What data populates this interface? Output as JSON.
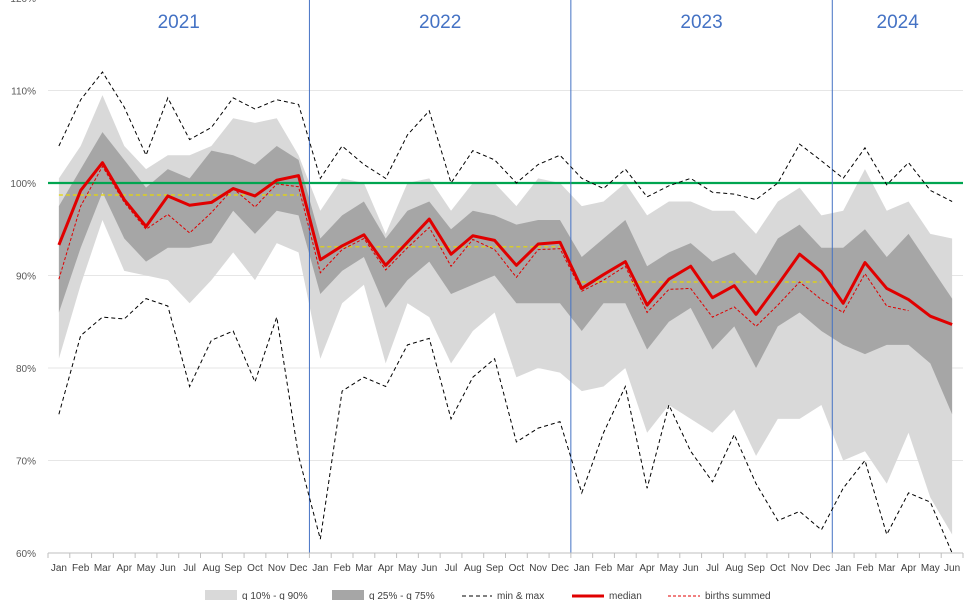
{
  "chart_data": {
    "type": "area",
    "title": "",
    "xlabel": "",
    "ylabel": "",
    "ylim": [
      60,
      120
    ],
    "yticks": [
      60,
      70,
      80,
      90,
      100,
      110,
      120
    ],
    "ytick_labels": [
      "60%",
      "70%",
      "80%",
      "90%",
      "100%",
      "110%",
      "120%"
    ],
    "categories": [
      "Jan",
      "Feb",
      "Mar",
      "Apr",
      "May",
      "Jun",
      "Jul",
      "Aug",
      "Sep",
      "Oct",
      "Nov",
      "Dec",
      "Jan",
      "Feb",
      "Mar",
      "Apr",
      "May",
      "Jun",
      "Jul",
      "Aug",
      "Sep",
      "Oct",
      "Nov",
      "Dec",
      "Jan",
      "Feb",
      "Mar",
      "Apr",
      "May",
      "Jun",
      "Jul",
      "Aug",
      "Sep",
      "Oct",
      "Nov",
      "Dec",
      "Jan",
      "Feb",
      "Mar",
      "Apr",
      "May",
      "Jun"
    ],
    "years": [
      {
        "label": "2021",
        "start_index": 0,
        "end_index": 11
      },
      {
        "label": "2022",
        "start_index": 12,
        "end_index": 23
      },
      {
        "label": "2023",
        "start_index": 24,
        "end_index": 35
      },
      {
        "label": "2024",
        "start_index": 36,
        "end_index": 41
      }
    ],
    "reference_line": {
      "value": 100,
      "color": "#00a550"
    },
    "series": [
      {
        "name": "q 10% - q 90%",
        "kind": "band",
        "color": "#d9d9d9",
        "lower": [
          81,
          89,
          96,
          90.5,
          90,
          89.5,
          87,
          89.5,
          92.5,
          89.5,
          93.5,
          92.5,
          81,
          87,
          89,
          80.5,
          87,
          85.5,
          80.5,
          84,
          86,
          79,
          80,
          79.5,
          77.5,
          78,
          80,
          73,
          76,
          74.5,
          73,
          75.5,
          70.5,
          74.5,
          74.5,
          76,
          70,
          71,
          67.5,
          73,
          66,
          62
        ],
        "upper": [
          100.5,
          104,
          109.5,
          104,
          101.5,
          103,
          103,
          104,
          107,
          106.5,
          107,
          103,
          97,
          100.5,
          100,
          94.5,
          100,
          100.5,
          97,
          100,
          100,
          97.5,
          100.5,
          100,
          97.5,
          98,
          100,
          96.5,
          98,
          98,
          97,
          97,
          94.5,
          98,
          99.5,
          96.5,
          97,
          101.5,
          97,
          98,
          94.5,
          94
        ]
      },
      {
        "name": "q 25% - q 75%",
        "kind": "band",
        "color": "#a6a6a6",
        "lower": [
          86,
          93,
          99,
          94,
          91.5,
          93,
          93,
          93.5,
          97,
          94.5,
          97,
          96.5,
          88,
          90.5,
          92,
          86.5,
          89.5,
          91.5,
          88,
          89,
          90,
          87,
          87,
          87,
          84,
          87,
          87,
          82,
          85,
          86.5,
          82,
          84.5,
          80,
          84.5,
          86,
          84,
          82.5,
          81.5,
          82.5,
          82.5,
          80.5,
          75
        ],
        "upper": [
          97.5,
          101.5,
          105.5,
          102.5,
          99.5,
          101.5,
          100.5,
          103.5,
          103,
          102,
          104,
          102.5,
          94,
          96.5,
          98,
          94,
          97,
          98,
          95,
          97,
          96.5,
          95.5,
          96,
          96,
          92,
          94,
          96,
          91,
          92.5,
          93.5,
          91.5,
          92.5,
          90,
          94,
          95.5,
          93,
          93,
          95,
          92,
          94.5,
          91,
          87.5
        ]
      },
      {
        "name": "min & max",
        "kind": "dashed_pair",
        "color": "#000000",
        "lower": [
          75,
          83.5,
          85.5,
          85.3,
          87.5,
          86.7,
          78,
          83,
          84,
          78.5,
          85.5,
          70.5,
          61.5,
          77.5,
          79,
          78,
          82.5,
          83.2,
          74.5,
          79,
          81,
          72,
          73.5,
          74.2,
          66.5,
          73,
          78,
          67,
          76,
          71,
          67.7,
          72.8,
          67.5,
          63.5,
          64.5,
          62.5,
          67,
          70,
          62,
          66.5,
          65.5,
          60
        ],
        "upper": [
          104,
          109,
          112,
          108.2,
          103,
          109.2,
          104.7,
          106,
          109.2,
          108,
          109,
          108.5,
          100.5,
          104,
          102,
          100.5,
          105.2,
          107.8,
          100,
          103.5,
          102.5,
          100,
          102,
          103,
          100.5,
          99.4,
          101.5,
          98.5,
          99.7,
          100.5,
          99,
          98.8,
          98.2,
          100,
          104.2,
          102.4,
          100.5,
          103.8,
          99.8,
          102.2,
          99.2,
          98
        ]
      },
      {
        "name": "median",
        "kind": "line",
        "color": "#e00000",
        "values": [
          93.3,
          99.2,
          102.2,
          98.2,
          95.3,
          98.6,
          97.6,
          97.9,
          99.4,
          98.6,
          100.3,
          100.8,
          91.7,
          93.2,
          94.4,
          91.1,
          93.6,
          96.1,
          92.3,
          94.3,
          93.8,
          91.1,
          93.4,
          93.6,
          88.6,
          90.1,
          91.5,
          86.8,
          89.6,
          91.0,
          87.6,
          88.9,
          85.8,
          89.0,
          92.3,
          90.4,
          87.0,
          91.4,
          88.6,
          87.4,
          85.6,
          84.7
        ]
      },
      {
        "name": "births summed",
        "kind": "dashed_line",
        "color": "#e00000",
        "values": [
          89.6,
          97.5,
          101.8,
          97.9,
          95.0,
          96.6,
          94.6,
          96.8,
          99.4,
          97.4,
          99.9,
          99.6,
          90.3,
          92.8,
          94.0,
          90.6,
          93.0,
          95.2,
          91.0,
          93.9,
          92.8,
          89.8,
          92.8,
          92.9,
          88.3,
          89.5,
          91.0,
          86.0,
          88.5,
          88.6,
          85.5,
          86.6,
          84.5,
          86.8,
          89.3,
          87.4,
          86.0,
          90.2,
          86.7,
          86.2,
          null,
          null
        ]
      },
      {
        "name": "yearly average",
        "kind": "yellow_dashed",
        "color": "#e8d800",
        "segments": [
          {
            "start_index": 0,
            "end_index": 11,
            "value": 98.7
          },
          {
            "start_index": 12,
            "end_index": 23,
            "value": 93.1
          },
          {
            "start_index": 24,
            "end_index": 35,
            "value": 89.3
          }
        ]
      }
    ],
    "legend": {
      "placement": "bottom",
      "entries": [
        "q 10% - q 90%",
        "q 25% - q 75%",
        "min & max",
        "median",
        "births summed"
      ]
    }
  }
}
